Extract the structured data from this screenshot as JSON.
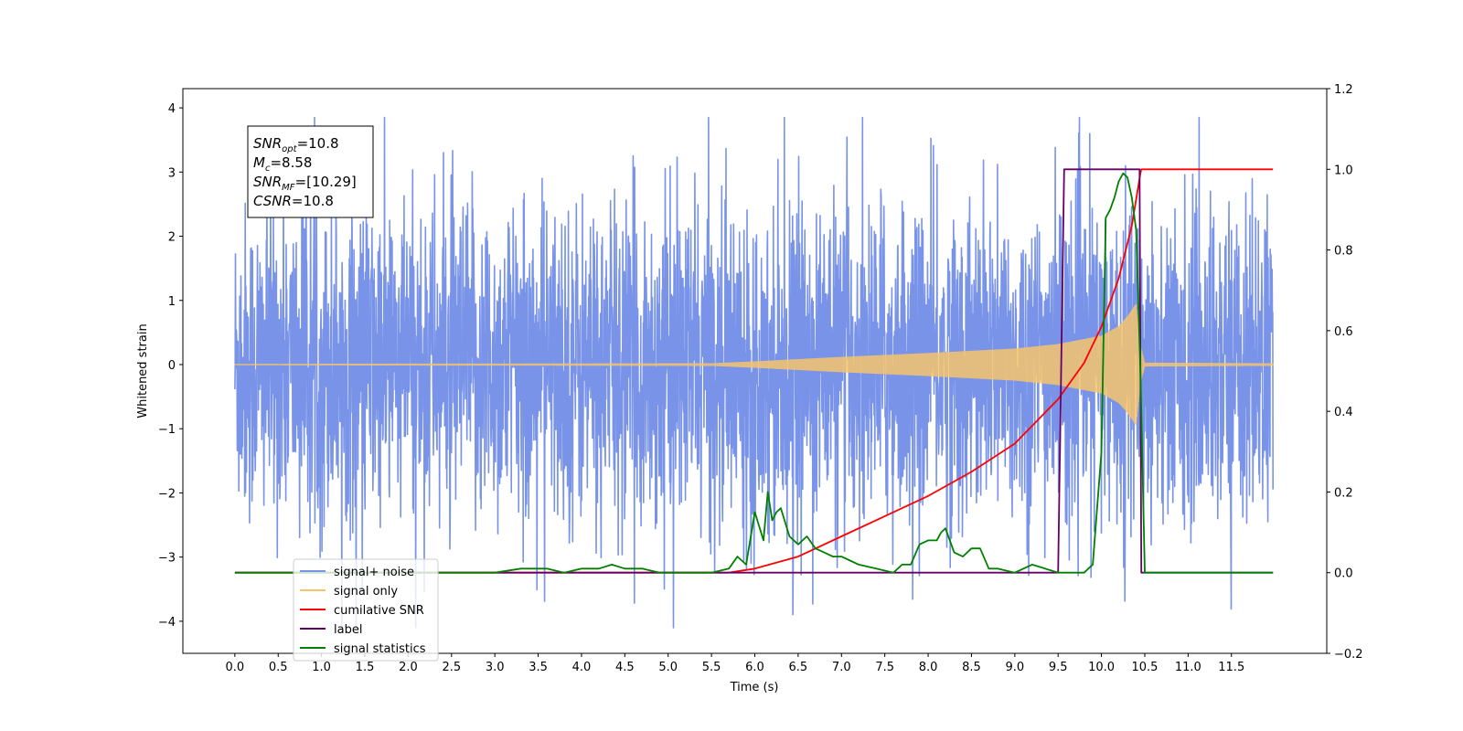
{
  "chart_data": {
    "type": "line",
    "xlabel": "Time (s)",
    "ylabel": "Whitened strain",
    "xlim": [
      -0.6,
      12.6
    ],
    "ylim": [
      -4.5,
      4.3
    ],
    "y2lim": [
      -0.2,
      1.2
    ],
    "x_ticks": [
      0.0,
      0.5,
      1.0,
      1.5,
      2.0,
      2.5,
      3.0,
      3.5,
      4.0,
      4.5,
      5.0,
      5.5,
      6.0,
      6.5,
      7.0,
      7.5,
      8.0,
      8.5,
      9.0,
      9.5,
      10.0,
      10.5,
      11.0,
      11.5
    ],
    "x_tick_labels": [
      "0.0",
      "0.5",
      "1.0",
      "1.5",
      "2.0",
      "2.5",
      "3.0",
      "3.5",
      "4.0",
      "4.5",
      "5.0",
      "5.5",
      "6.0",
      "6.5",
      "7.0",
      "7.5",
      "8.0",
      "8.5",
      "9.0",
      "9.5",
      "10.0",
      "10.5",
      "11.0",
      "11.5"
    ],
    "y_ticks": [
      -4,
      -3,
      -2,
      -1,
      0,
      1,
      2,
      3,
      4
    ],
    "y_tick_labels": [
      "−4",
      "−3",
      "−2",
      "−1",
      "0",
      "1",
      "2",
      "3",
      "4"
    ],
    "y2_ticks": [
      -0.2,
      0.0,
      0.2,
      0.4,
      0.6,
      0.8,
      1.0,
      1.2
    ],
    "y2_tick_labels": [
      "−0.2",
      "0.0",
      "0.2",
      "0.4",
      "0.6",
      "0.8",
      "1.0",
      "1.2"
    ],
    "grid": false,
    "legend_position": "lower-left",
    "annotation": {
      "lines": [
        {
          "base": "SNR",
          "sub": "opt",
          "value": "=10.8"
        },
        {
          "base": "M",
          "sub": "c",
          "value": "=8.58"
        },
        {
          "base": "SNR",
          "sub": "MF",
          "value": "=[10.29]"
        },
        {
          "base": "CSNR",
          "sub": "",
          "value": "=10.8"
        }
      ]
    },
    "series": [
      {
        "name": "signal+ noise",
        "axis": "left",
        "color": "#7893e8",
        "style": "noise",
        "x_range": [
          0.0,
          11.98
        ],
        "typical_amplitude": 2.0,
        "max": 3.85,
        "min": -4.1
      },
      {
        "name": "signal only",
        "axis": "left",
        "color": "#f5c46c",
        "style": "chirp",
        "x_range": [
          0.0,
          11.98
        ],
        "envelope": {
          "x": [
            0.0,
            5.5,
            6.0,
            7.0,
            8.0,
            9.0,
            9.5,
            10.0,
            10.2,
            10.3,
            10.4,
            10.45,
            10.5,
            11.98
          ],
          "y": [
            0.01,
            0.02,
            0.05,
            0.12,
            0.18,
            0.25,
            0.32,
            0.45,
            0.6,
            0.75,
            0.95,
            0.3,
            0.03,
            0.02
          ]
        }
      },
      {
        "name": "cumilative SNR",
        "axis": "right",
        "color": "#ff0000",
        "style": "line",
        "x": [
          0.0,
          5.7,
          6.0,
          6.5,
          7.0,
          7.5,
          8.0,
          8.5,
          9.0,
          9.5,
          9.8,
          10.0,
          10.2,
          10.35,
          10.45,
          10.46,
          11.98
        ],
        "y": [
          0.0,
          0.0,
          0.01,
          0.04,
          0.09,
          0.14,
          0.19,
          0.25,
          0.32,
          0.43,
          0.52,
          0.61,
          0.73,
          0.86,
          0.99,
          1.0,
          1.0
        ]
      },
      {
        "name": "label",
        "axis": "right",
        "color": "#660066",
        "style": "line",
        "x": [
          0.0,
          9.5,
          9.57,
          10.44,
          10.46,
          11.98
        ],
        "y": [
          0.0,
          0.0,
          1.0,
          1.0,
          0.0,
          0.0
        ]
      },
      {
        "name": "signal statistics",
        "axis": "right",
        "color": "#008000",
        "style": "line",
        "x": [
          0.0,
          3.0,
          3.3,
          3.6,
          3.8,
          4.0,
          4.2,
          4.35,
          4.5,
          4.7,
          4.9,
          5.2,
          5.5,
          5.7,
          5.8,
          5.9,
          6.0,
          6.1,
          6.15,
          6.2,
          6.25,
          6.3,
          6.4,
          6.5,
          6.6,
          6.7,
          6.8,
          6.9,
          7.0,
          7.1,
          7.2,
          7.4,
          7.6,
          7.7,
          7.8,
          7.9,
          8.0,
          8.1,
          8.15,
          8.2,
          8.3,
          8.4,
          8.5,
          8.6,
          8.7,
          8.8,
          9.0,
          9.2,
          9.5,
          9.8,
          9.9,
          10.0,
          10.05,
          10.1,
          10.15,
          10.2,
          10.25,
          10.3,
          10.35,
          10.4,
          10.45,
          10.5,
          11.98
        ],
        "y": [
          0.0,
          0.0,
          0.01,
          0.01,
          0.0,
          0.01,
          0.01,
          0.02,
          0.01,
          0.01,
          0.0,
          0.0,
          0.0,
          0.01,
          0.04,
          0.02,
          0.15,
          0.08,
          0.2,
          0.13,
          0.15,
          0.16,
          0.09,
          0.07,
          0.09,
          0.06,
          0.05,
          0.04,
          0.04,
          0.03,
          0.02,
          0.01,
          0.0,
          0.02,
          0.02,
          0.07,
          0.08,
          0.08,
          0.1,
          0.11,
          0.05,
          0.04,
          0.06,
          0.06,
          0.01,
          0.01,
          0.0,
          0.02,
          0.0,
          0.0,
          0.02,
          0.3,
          0.88,
          0.9,
          0.93,
          0.97,
          0.99,
          0.98,
          0.93,
          0.85,
          0.5,
          0.0,
          0.0
        ]
      }
    ],
    "legend": [
      {
        "label": "signal+ noise",
        "color": "#7893e8"
      },
      {
        "label": "signal only",
        "color": "#f5c46c"
      },
      {
        "label": "cumilative SNR",
        "color": "#ff0000"
      },
      {
        "label": "label",
        "color": "#660066"
      },
      {
        "label": "signal statistics",
        "color": "#008000"
      }
    ]
  }
}
